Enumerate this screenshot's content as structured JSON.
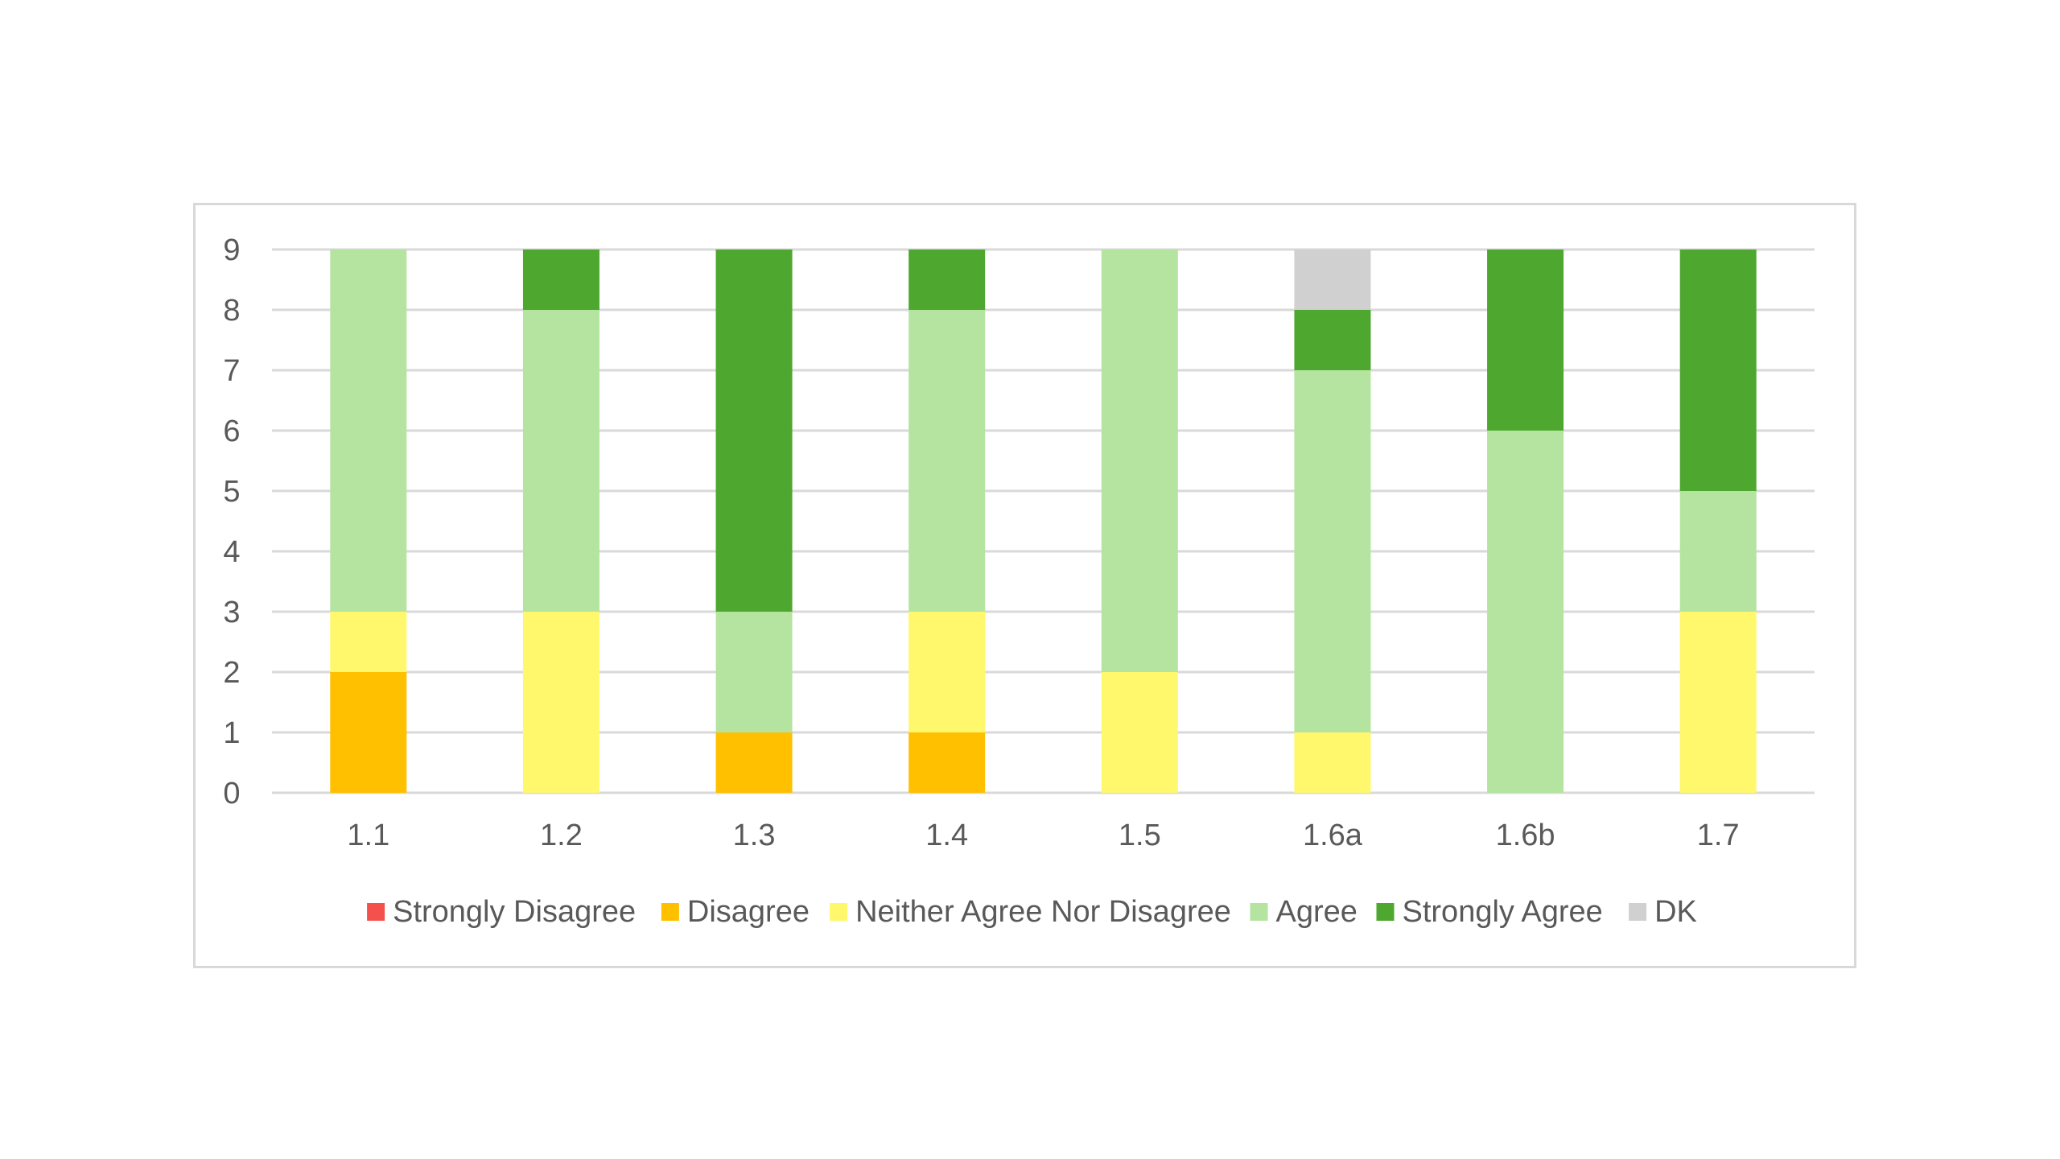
{
  "chart_data": {
    "type": "bar",
    "stacked": true,
    "categories": [
      "1.1",
      "1.2",
      "1.3",
      "1.4",
      "1.5",
      "1.6a",
      "1.6b",
      "1.7"
    ],
    "series": [
      {
        "name": "Strongly Disagree",
        "color": "#f4514d",
        "values": [
          0,
          0,
          0,
          0,
          0,
          0,
          0,
          0
        ]
      },
      {
        "name": "Disagree",
        "color": "#ffc000",
        "values": [
          2,
          0,
          1,
          1,
          0,
          0,
          0,
          0
        ]
      },
      {
        "name": "Neither Agree Nor Disagree",
        "color": "#fff86c",
        "values": [
          1,
          3,
          0,
          2,
          2,
          1,
          0,
          3
        ]
      },
      {
        "name": "Agree",
        "color": "#b4e4a0",
        "values": [
          6,
          5,
          2,
          5,
          7,
          6,
          6,
          2
        ]
      },
      {
        "name": "Strongly Agree",
        "color": "#4ea72e",
        "values": [
          0,
          1,
          6,
          1,
          0,
          1,
          3,
          4
        ]
      },
      {
        "name": "DK",
        "color": "#d0d0d0",
        "values": [
          0,
          0,
          0,
          0,
          0,
          1,
          0,
          0
        ]
      }
    ],
    "ylim": [
      0,
      9
    ],
    "yticks": [
      "0",
      "1",
      "2",
      "3",
      "4",
      "5",
      "6",
      "7",
      "8",
      "9"
    ],
    "grid": true,
    "legend_position": "bottom",
    "title": "",
    "xlabel": "",
    "ylabel": ""
  },
  "colors": {
    "gridline": "#d9d9d9",
    "text": "#595959",
    "border": "#d9d9d9"
  }
}
